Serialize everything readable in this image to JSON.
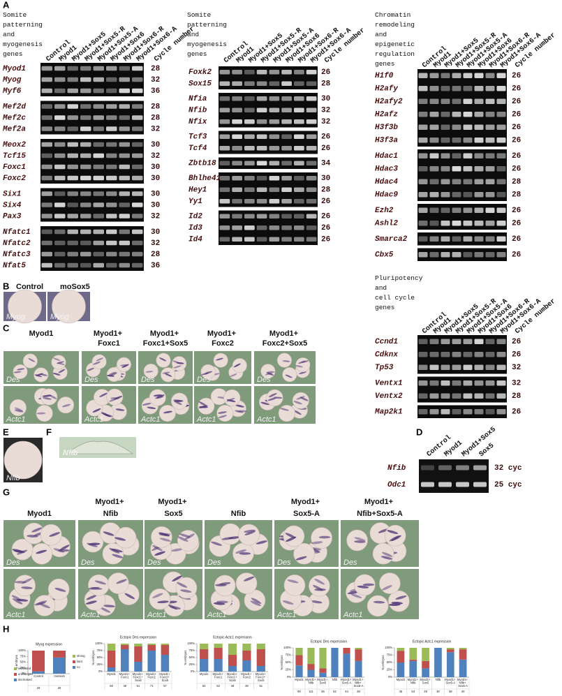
{
  "panel_labels": [
    "A",
    "B",
    "C",
    "D",
    "E",
    "F",
    "G",
    "H"
  ],
  "panel_a": {
    "lanes": [
      "Control",
      "Myod1",
      "Myod1+Sox5",
      "Myod1+Sox5-R",
      "Myod1+Sox5-A",
      "Myod1+Sox6",
      "Myod1+Sox6-R",
      "Myod1+Sox6-A"
    ],
    "cycle_header": "Cycle number",
    "blocks": [
      {
        "heading": "Somite patterning and myogenesis genes",
        "groups": [
          [
            {
              "gene": "Myod1",
              "cycles": 28
            },
            {
              "gene": "Myog",
              "cycles": 32
            },
            {
              "gene": "Myf6",
              "cycles": 36
            }
          ],
          [
            {
              "gene": "Mef2d",
              "cycles": 28
            },
            {
              "gene": "Mef2c",
              "cycles": 28
            },
            {
              "gene": "Mef2a",
              "cycles": 32
            }
          ],
          [
            {
              "gene": "Meox2",
              "cycles": 30
            },
            {
              "gene": "Tcf15",
              "cycles": 32
            },
            {
              "gene": "Foxc1",
              "cycles": 30
            },
            {
              "gene": "Foxc2",
              "cycles": 30
            }
          ],
          [
            {
              "gene": "Six1",
              "cycles": 30
            },
            {
              "gene": "Six4",
              "cycles": 30
            },
            {
              "gene": "Pax3",
              "cycles": 32
            }
          ],
          [
            {
              "gene": "Nfatc1",
              "cycles": 30
            },
            {
              "gene": "Nfatc2",
              "cycles": 32
            },
            {
              "gene": "Nfatc3",
              "cycles": 28
            },
            {
              "gene": "Nfat5",
              "cycles": 36
            }
          ]
        ]
      },
      {
        "heading": "Somite patterning and myogenesis genes",
        "groups": [
          [
            {
              "gene": "Foxk2",
              "cycles": 26
            },
            {
              "gene": "Sox15",
              "cycles": 28
            }
          ],
          [
            {
              "gene": "Nfia",
              "cycles": 30
            },
            {
              "gene": "Nfib",
              "cycles": 32
            },
            {
              "gene": "Nfix",
              "cycles": 32
            }
          ],
          [
            {
              "gene": "Tcf3",
              "cycles": 26
            },
            {
              "gene": "Tcf4",
              "cycles": 26
            }
          ],
          [
            {
              "gene": "Zbtb18",
              "cycles": 34
            }
          ],
          [
            {
              "gene": "Bhlhe41",
              "cycles": 30
            },
            {
              "gene": "Hey1",
              "cycles": 28
            },
            {
              "gene": "Yy1",
              "cycles": 26
            }
          ],
          [
            {
              "gene": "Id2",
              "cycles": 26
            },
            {
              "gene": "Id3",
              "cycles": 26
            },
            {
              "gene": "Id4",
              "cycles": 26
            }
          ]
        ]
      },
      {
        "heading": "Chromatin remodeling and epigenetic regulation genes",
        "groups": [
          [
            {
              "gene": "H1f0",
              "cycles": 26
            },
            {
              "gene": "H2afy",
              "cycles": 26
            },
            {
              "gene": "H2afy2",
              "cycles": 26
            },
            {
              "gene": "H2afz",
              "cycles": 26
            },
            {
              "gene": "H3f3b",
              "cycles": 26
            },
            {
              "gene": "H3f3a",
              "cycles": 26
            }
          ],
          [
            {
              "gene": "Hdac1",
              "cycles": 26
            },
            {
              "gene": "Hdac3",
              "cycles": 26
            },
            {
              "gene": "Hdac4",
              "cycles": 28
            },
            {
              "gene": "Hdac9",
              "cycles": 28
            }
          ],
          [
            {
              "gene": "Ezh2",
              "cycles": 26
            },
            {
              "gene": "Ashl2",
              "cycles": 26
            }
          ],
          [
            {
              "gene": "Smarca2",
              "cycles": 26
            }
          ],
          [
            {
              "gene": "Cbx5",
              "cycles": 26
            }
          ]
        ]
      },
      {
        "heading": "Pluripotency and cell cycle genes",
        "groups": [
          [
            {
              "gene": "Ccnd1",
              "cycles": 26
            },
            {
              "gene": "Cdknx",
              "cycles": 26
            },
            {
              "gene": "Tp53",
              "cycles": 32
            }
          ],
          [
            {
              "gene": "Ventx1",
              "cycles": 32
            },
            {
              "gene": "Ventx2",
              "cycles": 28
            }
          ],
          [
            {
              "gene": "Map2k1",
              "cycles": 26
            }
          ]
        ]
      }
    ]
  },
  "panel_b": {
    "columns": [
      "Control",
      "moSox5"
    ],
    "stain": "Myog"
  },
  "panel_c": {
    "columns": [
      "Myod1",
      "Myod1+ Foxc1",
      "Myod1+ Foxc1+Sox5",
      "Myod1+ Foxc2",
      "Myod1+ Foxc2+Sox5"
    ],
    "row_labels": [
      "Des",
      "Actc1"
    ]
  },
  "panel_d": {
    "lanes": [
      "Control",
      "Myod1",
      "Myod1+Sox5",
      "Sox5"
    ],
    "rows": [
      {
        "gene": "Nfib",
        "cycles": "32 cyc"
      },
      {
        "gene": "Odc1",
        "cycles": "25 cyc"
      }
    ]
  },
  "panel_e": {
    "stain": "Nfib"
  },
  "panel_f": {
    "stain": "Nfib"
  },
  "panel_g": {
    "columns": [
      "Myod1",
      "Myod1+ Nfib",
      "Myod1+ Sox5",
      "Nfib",
      "Myod1+ Sox5-A",
      "Myod1+ Nfib+Sox5-A"
    ],
    "row_labels": [
      "Des",
      "Actc1"
    ]
  },
  "chart_data": [
    {
      "type": "stacked_bar",
      "title": "Myog expression",
      "y_label": "% embryos",
      "categories": [
        "Control",
        "moSox5"
      ],
      "n": [
        29,
        30
      ],
      "ylim": [
        0,
        100
      ],
      "yticks": [
        {
          "value": 0,
          "label": "0%"
        },
        {
          "value": 25,
          "label": "25%"
        },
        {
          "value": 50,
          "label": "50%"
        },
        {
          "value": 75,
          "label": "75%"
        },
        {
          "value": 100,
          "label": "100%"
        }
      ],
      "legend": true,
      "series": [
        {
          "name": "decreased",
          "color": "#4f81bd",
          "values": [
            10,
            70
          ]
        },
        {
          "name": "unchanged",
          "color": "#c0504d",
          "values": [
            90,
            30
          ]
        },
        {
          "name": "increased",
          "color": "#9bbb59",
          "values": [
            0,
            0
          ]
        }
      ]
    },
    {
      "type": "stacked_bar",
      "title": "Ectopic Des expression",
      "y_label": "% embryos",
      "categories": [
        "Myod1",
        "Myod1+ Foxc1",
        "Myod1+ Foxc1+ Sox5",
        "Myod1+ Foxc2",
        "Myod1+ Foxc2+ Sox5"
      ],
      "n": [
        60,
        48,
        51,
        71,
        57
      ],
      "ylim": [
        0,
        100
      ],
      "yticks": [
        {
          "value": 0,
          "label": "0%"
        },
        {
          "value": 25,
          "label": "25%"
        },
        {
          "value": 50,
          "label": "50%"
        },
        {
          "value": 75,
          "label": "75%"
        },
        {
          "value": 100,
          "label": "100%"
        }
      ],
      "legend": true,
      "series": [
        {
          "name": "no",
          "color": "#4f81bd",
          "values": [
            15,
            80,
            35,
            75,
            60
          ]
        },
        {
          "name": "faint",
          "color": "#c0504d",
          "values": [
            60,
            15,
            55,
            20,
            35
          ]
        },
        {
          "name": "strong",
          "color": "#9bbb59",
          "values": [
            25,
            5,
            10,
            5,
            5
          ]
        }
      ]
    },
    {
      "type": "stacked_bar",
      "title": "Ectopic Actc1 expression",
      "y_label": "% embryos",
      "categories": [
        "Myod1",
        "Myod1+ Foxc1",
        "Myod1+ Foxc1+ Sox5",
        "Myod1+ Foxc2",
        "Myod1+ Foxc2+ Sox5"
      ],
      "n": [
        64,
        62,
        48,
        39,
        51
      ],
      "ylim": [
        0,
        100
      ],
      "yticks": [
        {
          "value": 0,
          "label": "0%"
        },
        {
          "value": 25,
          "label": "25%"
        },
        {
          "value": 50,
          "label": "50%"
        },
        {
          "value": 75,
          "label": "75%"
        },
        {
          "value": 100,
          "label": "100%"
        }
      ],
      "legend": false,
      "series": [
        {
          "color": "#4f81bd",
          "values": [
            45,
            45,
            20,
            40,
            20
          ]
        },
        {
          "color": "#c0504d",
          "values": [
            35,
            40,
            40,
            35,
            60
          ]
        },
        {
          "color": "#9bbb59",
          "values": [
            20,
            15,
            40,
            25,
            20
          ]
        }
      ]
    },
    {
      "type": "stacked_bar",
      "title": "Ectopic Des expression",
      "y_label": "% embryos",
      "categories": [
        "Myod1",
        "Myod1+ Nfib",
        "Myod1+ Sox5",
        "Nfib",
        "Myod1+ Sox5-A",
        "Myod1+ Nfib+ Sox5-A"
      ],
      "n": [
        90,
        111,
        36,
        52,
        44,
        38
      ],
      "ylim": [
        0,
        100
      ],
      "yticks": [
        {
          "value": 0,
          "label": "0%"
        },
        {
          "value": 25,
          "label": "25%"
        },
        {
          "value": 50,
          "label": "50%"
        },
        {
          "value": 75,
          "label": "75%"
        },
        {
          "value": 100,
          "label": "100%"
        }
      ],
      "legend": false,
      "series": [
        {
          "color": "#4f81bd",
          "values": [
            40,
            25,
            15,
            100,
            80,
            55
          ]
        },
        {
          "color": "#c0504d",
          "values": [
            35,
            20,
            15,
            0,
            20,
            40
          ]
        },
        {
          "color": "#9bbb59",
          "values": [
            25,
            55,
            70,
            0,
            0,
            5
          ]
        }
      ]
    },
    {
      "type": "stacked_bar",
      "title": "Ectopic Actc1 expression",
      "y_label": "% embryos",
      "categories": [
        "Myod1",
        "Myod1+ Nfib",
        "Myod1+ Sox5",
        "Nfib",
        "Myod1+ Sox5-A",
        "Myod1+ Nfib+ Sox5-A"
      ],
      "n": [
        45,
        53,
        29,
        30,
        38,
        40
      ],
      "ylim": [
        0,
        100
      ],
      "yticks": [
        {
          "value": 0,
          "label": "0%"
        },
        {
          "value": 25,
          "label": "25%"
        },
        {
          "value": 50,
          "label": "50%"
        },
        {
          "value": 75,
          "label": "75%"
        },
        {
          "value": 100,
          "label": "100%"
        }
      ],
      "legend": false,
      "series": [
        {
          "color": "#4f81bd",
          "values": [
            50,
            55,
            30,
            100,
            85,
            60
          ]
        },
        {
          "color": "#c0504d",
          "values": [
            40,
            5,
            25,
            0,
            10,
            35
          ]
        },
        {
          "color": "#9bbb59",
          "values": [
            10,
            40,
            45,
            0,
            5,
            5
          ]
        }
      ]
    }
  ]
}
